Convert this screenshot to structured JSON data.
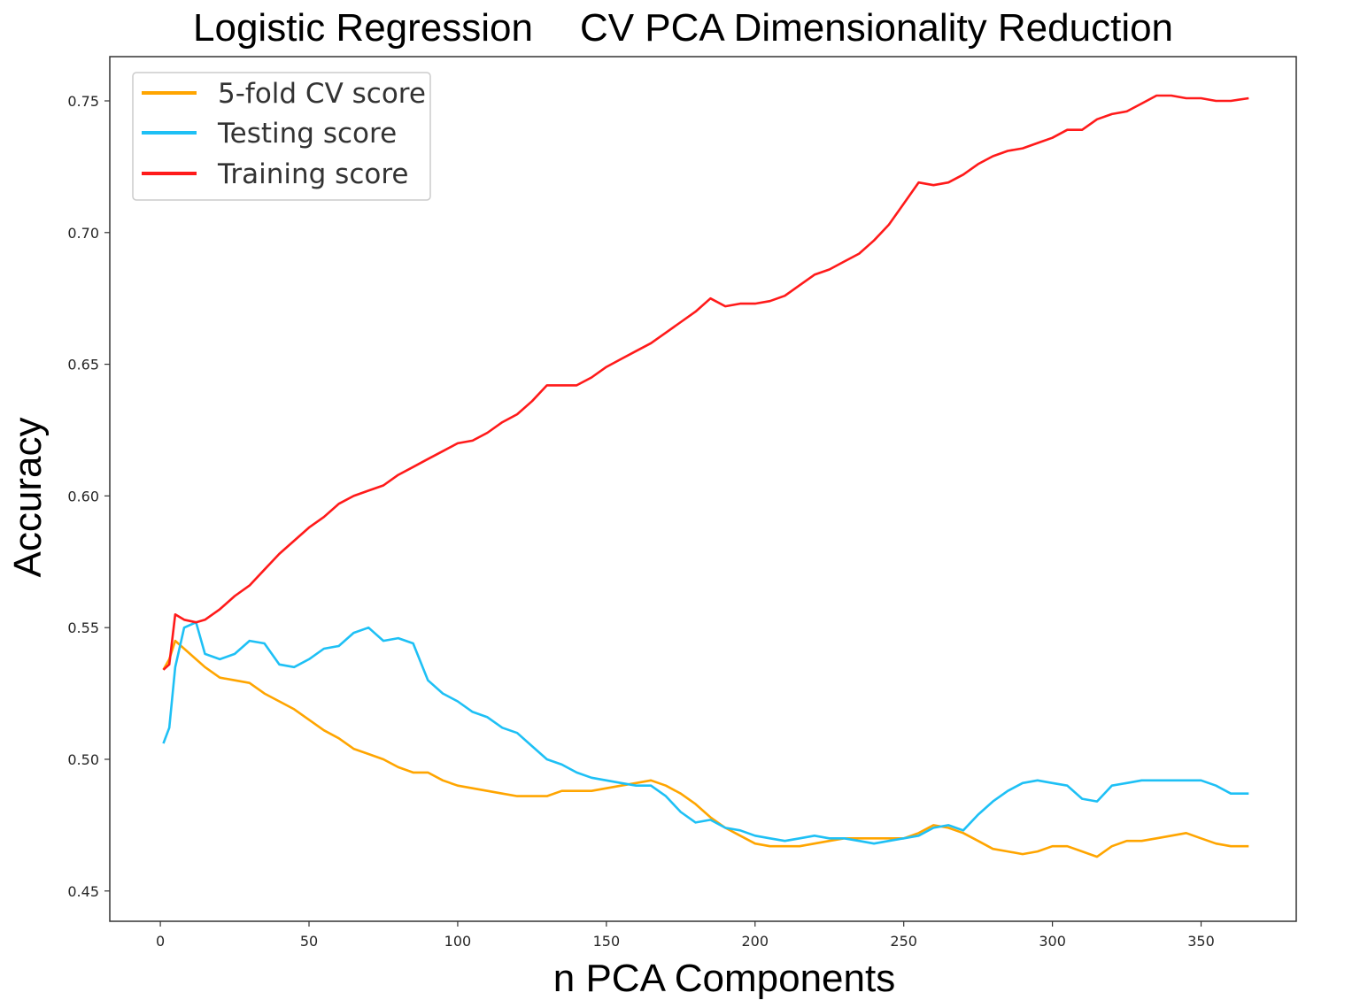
{
  "chart_data": {
    "type": "line",
    "title_part1": "Logistic Regression",
    "title_part2": "CV PCA Dimensionality Reduction",
    "xlabel": "n PCA Components",
    "ylabel": "Accuracy",
    "xlim": [
      -17,
      382
    ],
    "ylim": [
      0.4385,
      0.7668
    ],
    "xticks": [
      0,
      50,
      100,
      150,
      200,
      250,
      300,
      350
    ],
    "xtick_labels": [
      "0",
      "50",
      "100",
      "150",
      "200",
      "250",
      "300",
      "350"
    ],
    "yticks": [
      0.45,
      0.5,
      0.55,
      0.6,
      0.65,
      0.7,
      0.75
    ],
    "ytick_labels": [
      "0.45",
      "0.50",
      "0.55",
      "0.60",
      "0.65",
      "0.70",
      "0.75"
    ],
    "grid": false,
    "legend_position": "top-left",
    "series": [
      {
        "name": "5-fold CV score",
        "color": "#ffa500",
        "x": [
          1,
          3,
          5,
          8,
          12,
          15,
          20,
          25,
          30,
          35,
          40,
          45,
          50,
          55,
          60,
          65,
          70,
          75,
          80,
          85,
          90,
          95,
          100,
          105,
          110,
          115,
          120,
          125,
          130,
          135,
          140,
          145,
          150,
          155,
          160,
          165,
          170,
          175,
          180,
          185,
          190,
          195,
          200,
          205,
          210,
          215,
          220,
          225,
          230,
          235,
          240,
          245,
          250,
          255,
          260,
          265,
          270,
          275,
          280,
          285,
          290,
          295,
          300,
          305,
          310,
          315,
          320,
          325,
          330,
          335,
          340,
          345,
          350,
          355,
          360,
          366
        ],
        "y": [
          0.534,
          0.538,
          0.545,
          0.542,
          0.538,
          0.535,
          0.531,
          0.53,
          0.529,
          0.525,
          0.522,
          0.519,
          0.515,
          0.511,
          0.508,
          0.504,
          0.502,
          0.5,
          0.497,
          0.495,
          0.495,
          0.492,
          0.49,
          0.489,
          0.488,
          0.487,
          0.486,
          0.486,
          0.486,
          0.488,
          0.488,
          0.488,
          0.489,
          0.49,
          0.491,
          0.492,
          0.49,
          0.487,
          0.483,
          0.478,
          0.474,
          0.471,
          0.468,
          0.467,
          0.467,
          0.467,
          0.468,
          0.469,
          0.47,
          0.47,
          0.47,
          0.47,
          0.47,
          0.472,
          0.475,
          0.474,
          0.472,
          0.469,
          0.466,
          0.465,
          0.464,
          0.465,
          0.467,
          0.467,
          0.465,
          0.463,
          0.467,
          0.469,
          0.469,
          0.47,
          0.471,
          0.472,
          0.47,
          0.468,
          0.467,
          0.467
        ]
      },
      {
        "name": "Testing score",
        "color": "#1ec0f5",
        "x": [
          1,
          3,
          5,
          8,
          12,
          15,
          20,
          25,
          30,
          35,
          40,
          45,
          50,
          55,
          60,
          65,
          70,
          75,
          80,
          85,
          90,
          95,
          100,
          105,
          110,
          115,
          120,
          125,
          130,
          135,
          140,
          145,
          150,
          155,
          160,
          165,
          170,
          175,
          180,
          185,
          190,
          195,
          200,
          205,
          210,
          215,
          220,
          225,
          230,
          235,
          240,
          245,
          250,
          255,
          260,
          265,
          270,
          275,
          280,
          285,
          290,
          295,
          300,
          305,
          310,
          315,
          320,
          325,
          330,
          335,
          340,
          345,
          350,
          355,
          360,
          366
        ],
        "y": [
          0.506,
          0.512,
          0.535,
          0.55,
          0.552,
          0.54,
          0.538,
          0.54,
          0.545,
          0.544,
          0.536,
          0.535,
          0.538,
          0.542,
          0.543,
          0.548,
          0.55,
          0.545,
          0.546,
          0.544,
          0.53,
          0.525,
          0.522,
          0.518,
          0.516,
          0.512,
          0.51,
          0.505,
          0.5,
          0.498,
          0.495,
          0.493,
          0.492,
          0.491,
          0.49,
          0.49,
          0.486,
          0.48,
          0.476,
          0.477,
          0.474,
          0.473,
          0.471,
          0.47,
          0.469,
          0.47,
          0.471,
          0.47,
          0.47,
          0.469,
          0.468,
          0.469,
          0.47,
          0.471,
          0.474,
          0.475,
          0.473,
          0.479,
          0.484,
          0.488,
          0.491,
          0.492,
          0.491,
          0.49,
          0.485,
          0.484,
          0.49,
          0.491,
          0.492,
          0.492,
          0.492,
          0.492,
          0.492,
          0.49,
          0.487,
          0.487
        ]
      },
      {
        "name": "Training score",
        "color": "#ff1a1a",
        "x": [
          1,
          3,
          5,
          8,
          12,
          15,
          20,
          25,
          30,
          35,
          40,
          45,
          50,
          55,
          60,
          65,
          70,
          75,
          80,
          85,
          90,
          95,
          100,
          105,
          110,
          115,
          120,
          125,
          130,
          135,
          140,
          145,
          150,
          155,
          160,
          165,
          170,
          175,
          180,
          185,
          190,
          195,
          200,
          205,
          210,
          215,
          220,
          225,
          230,
          235,
          240,
          245,
          250,
          255,
          260,
          265,
          270,
          275,
          280,
          285,
          290,
          295,
          300,
          305,
          310,
          315,
          320,
          325,
          330,
          335,
          340,
          345,
          350,
          355,
          360,
          366
        ],
        "y": [
          0.534,
          0.536,
          0.555,
          0.553,
          0.552,
          0.553,
          0.557,
          0.562,
          0.566,
          0.572,
          0.578,
          0.583,
          0.588,
          0.592,
          0.597,
          0.6,
          0.602,
          0.604,
          0.608,
          0.611,
          0.614,
          0.617,
          0.62,
          0.621,
          0.624,
          0.628,
          0.631,
          0.636,
          0.642,
          0.642,
          0.642,
          0.645,
          0.649,
          0.652,
          0.655,
          0.658,
          0.662,
          0.666,
          0.67,
          0.675,
          0.672,
          0.673,
          0.673,
          0.674,
          0.676,
          0.68,
          0.684,
          0.686,
          0.689,
          0.692,
          0.697,
          0.703,
          0.711,
          0.719,
          0.718,
          0.719,
          0.722,
          0.726,
          0.729,
          0.731,
          0.732,
          0.734,
          0.736,
          0.739,
          0.739,
          0.743,
          0.745,
          0.746,
          0.749,
          0.752,
          0.752,
          0.751,
          0.751,
          0.75,
          0.75,
          0.751
        ]
      }
    ]
  }
}
